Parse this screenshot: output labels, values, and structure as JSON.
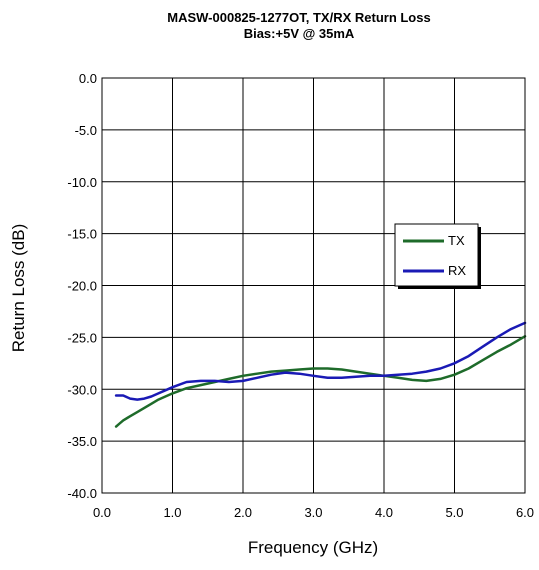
{
  "chart_data": {
    "type": "line",
    "title": "MASW-000825-1277OT, TX/RX Return Loss",
    "subtitle": "Bias:+5V @ 35mA",
    "xlabel": "Frequency (GHz)",
    "ylabel": "Return Loss (dB)",
    "xlim": [
      0.0,
      6.0
    ],
    "ylim": [
      -40.0,
      0.0
    ],
    "x_ticks": [
      "0.0",
      "1.0",
      "2.0",
      "3.0",
      "4.0",
      "5.0",
      "6.0"
    ],
    "y_ticks": [
      "0.0",
      "-5.0",
      "-10.0",
      "-15.0",
      "-20.0",
      "-25.0",
      "-30.0",
      "-35.0",
      "-40.0"
    ],
    "grid": true,
    "legend_position": "right",
    "series": [
      {
        "name": "TX",
        "color": "#1e6b2a",
        "x": [
          0.2,
          0.25,
          0.3,
          0.4,
          0.5,
          0.6,
          0.7,
          0.8,
          0.9,
          1.0,
          1.2,
          1.4,
          1.6,
          1.8,
          2.0,
          2.2,
          2.4,
          2.6,
          2.8,
          3.0,
          3.2,
          3.4,
          3.6,
          3.8,
          4.0,
          4.2,
          4.4,
          4.6,
          4.8,
          5.0,
          5.2,
          5.4,
          5.6,
          5.8,
          6.0
        ],
        "y": [
          -33.6,
          -33.3,
          -33.0,
          -32.6,
          -32.2,
          -31.8,
          -31.4,
          -31.0,
          -30.7,
          -30.4,
          -29.9,
          -29.6,
          -29.3,
          -29.0,
          -28.7,
          -28.5,
          -28.3,
          -28.2,
          -28.1,
          -28.0,
          -28.0,
          -28.1,
          -28.3,
          -28.5,
          -28.7,
          -28.9,
          -29.1,
          -29.2,
          -29.0,
          -28.6,
          -28.0,
          -27.2,
          -26.4,
          -25.7,
          -24.9
        ]
      },
      {
        "name": "RX",
        "color": "#1a1ab5",
        "x": [
          0.2,
          0.3,
          0.4,
          0.5,
          0.6,
          0.7,
          0.8,
          0.9,
          1.0,
          1.2,
          1.4,
          1.6,
          1.8,
          2.0,
          2.2,
          2.4,
          2.6,
          2.8,
          3.0,
          3.2,
          3.4,
          3.6,
          3.8,
          4.0,
          4.2,
          4.4,
          4.6,
          4.8,
          5.0,
          5.2,
          5.4,
          5.6,
          5.8,
          6.0
        ],
        "y": [
          -30.6,
          -30.6,
          -30.9,
          -31.0,
          -30.9,
          -30.7,
          -30.4,
          -30.1,
          -29.8,
          -29.3,
          -29.2,
          -29.2,
          -29.3,
          -29.2,
          -28.9,
          -28.6,
          -28.4,
          -28.5,
          -28.7,
          -28.9,
          -28.9,
          -28.8,
          -28.7,
          -28.7,
          -28.6,
          -28.5,
          -28.3,
          -28.0,
          -27.5,
          -26.8,
          -25.9,
          -25.0,
          -24.2,
          -23.6
        ]
      }
    ]
  }
}
